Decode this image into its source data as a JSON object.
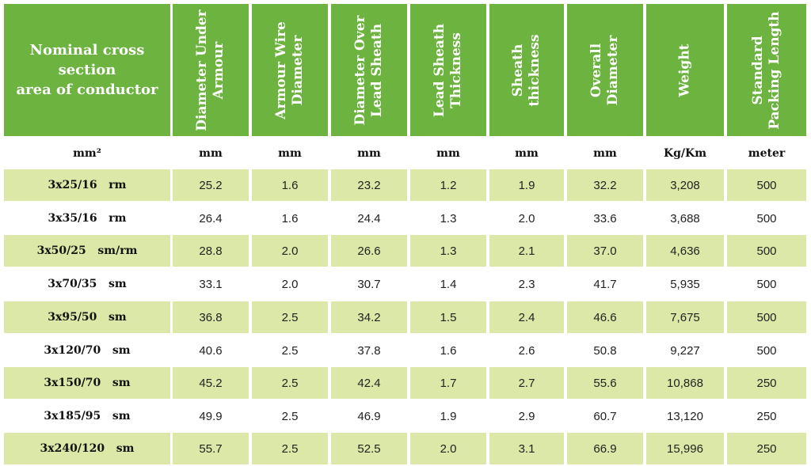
{
  "table": {
    "columns": [
      "Nominal cross section\narea of conductor",
      "Diameter Under\nArmour",
      "Armour Wire\nDiameter",
      "Diameter Over\nLead Sheath",
      "Lead Sheath\nThickness",
      "Sheath thickness",
      "Overall\nDiameter",
      "Weight",
      "Standard\nPacking Length"
    ],
    "units": [
      "mm²",
      "mm",
      "mm",
      "mm",
      "mm",
      "mm",
      "mm",
      "Kg/Km",
      "meter"
    ],
    "rows": [
      [
        "3x25/16   rm",
        "25.2",
        "1.6",
        "23.2",
        "1.2",
        "1.9",
        "32.2",
        "3,208",
        "500"
      ],
      [
        "3x35/16   rm",
        "26.4",
        "1.6",
        "24.4",
        "1.3",
        "2.0",
        "33.6",
        "3,688",
        "500"
      ],
      [
        "3x50/25   sm/rm",
        "28.8",
        "2.0",
        "26.6",
        "1.3",
        "2.1",
        "37.0",
        "4,636",
        "500"
      ],
      [
        "3x70/35   sm",
        "33.1",
        "2.0",
        "30.7",
        "1.4",
        "2.3",
        "41.7",
        "5,935",
        "500"
      ],
      [
        "3x95/50   sm",
        "36.8",
        "2.5",
        "34.2",
        "1.5",
        "2.4",
        "46.6",
        "7,675",
        "500"
      ],
      [
        "3x120/70   sm",
        "40.6",
        "2.5",
        "37.8",
        "1.6",
        "2.6",
        "50.8",
        "9,227",
        "500"
      ],
      [
        "3x150/70   sm",
        "45.2",
        "2.5",
        "42.4",
        "1.7",
        "2.7",
        "55.6",
        "10,868",
        "250"
      ],
      [
        "3x185/95   sm",
        "49.9",
        "2.5",
        "46.9",
        "1.9",
        "2.9",
        "60.7",
        "13,120",
        "250"
      ],
      [
        "3x240/120   sm",
        "55.7",
        "2.5",
        "52.5",
        "2.0",
        "3.1",
        "66.9",
        "15,996",
        "250"
      ]
    ]
  },
  "colors": {
    "header_bg": "#6db33f",
    "row_shade": "#dbe8a7"
  }
}
